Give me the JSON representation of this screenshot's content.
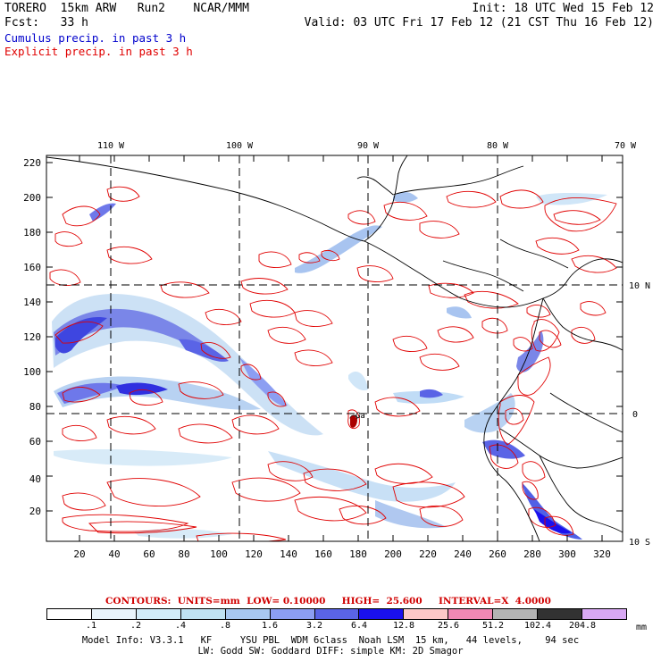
{
  "header": {
    "left_line1": "TORERO  15km ARW   Run2    NCAR/MMM",
    "left_line2": "Fcst:   33 h",
    "right_line1": "Init: 18 UTC Wed 15 Feb 12",
    "right_line2": "Valid: 03 UTC Fri 17 Feb 12 (21 CST Thu 16 Feb 12)"
  },
  "legend_lines": {
    "cumulus": "Cumulus precip. in past 3 h",
    "explicit": "Explicit precip. in past 3 h",
    "cumulus_color": "#0000cc",
    "explicit_color": "#e00000"
  },
  "map": {
    "lon_labels": [
      "110 W",
      "100 W",
      "90 W",
      "80 W",
      "70 W"
    ],
    "lat_labels": [
      "10 N",
      "0",
      "10 S"
    ],
    "y_ticks": [
      "20",
      "40",
      "60",
      "80",
      "100",
      "120",
      "140",
      "160",
      "180",
      "200",
      "220"
    ],
    "x_ticks": [
      "20",
      "40",
      "60",
      "80",
      "100",
      "120",
      "140",
      "160",
      "180",
      "200",
      "220",
      "240",
      "260",
      "280",
      "300",
      "320"
    ],
    "marker_label": "Ga"
  },
  "contour_info": {
    "text": "CONTOURS:  UNITS=mm  LOW= 0.10000     HIGH=  25.600     INTERVAL=X  4.0000"
  },
  "colorbar": {
    "labels": [
      ".1",
      ".2",
      ".4",
      ".8",
      "1.6",
      "3.2",
      "6.4",
      "12.8",
      "25.6",
      "51.2",
      "102.4",
      "204.8"
    ],
    "colors": [
      "#ffffff",
      "#e8f4fb",
      "#d2ecf8",
      "#c0e2f2",
      "#a8c8f0",
      "#8c9ef2",
      "#5a64e6",
      "#1a10ee",
      "#fcc8c8",
      "#f088b4",
      "#b4b4b4",
      "#323232",
      "#d8a8f4"
    ],
    "units": "mm"
  },
  "footer": {
    "line1": "Model Info: V3.3.1   KF     YSU PBL  WDM 6class  Noah LSM  15 km,   44 levels,    94 sec",
    "line2": "LW: Godd SW: Goddard DIFF: simple KM: 2D Smagor"
  }
}
